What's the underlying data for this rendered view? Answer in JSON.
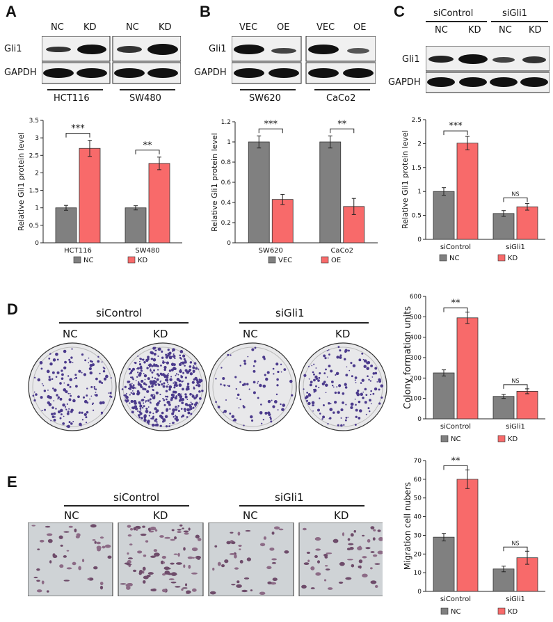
{
  "panels": {
    "A": {
      "label": "A",
      "lanes": [
        "NC",
        "KD",
        "NC",
        "KD"
      ],
      "rows": [
        "Gli1",
        "GAPDH"
      ],
      "groups": [
        "HCT116",
        "SW480"
      ]
    },
    "B": {
      "label": "B",
      "lanes": [
        "VEC",
        "OE",
        "VEC",
        "OE"
      ],
      "rows": [
        "Gli1",
        "GAPDH"
      ],
      "groups": [
        "SW620",
        "CaCo2"
      ]
    },
    "C": {
      "label": "C",
      "groups": [
        "siControl",
        "siGli1"
      ],
      "lanes": [
        "NC",
        "KD",
        "NC",
        "KD"
      ],
      "rows": [
        "Gli1",
        "GAPDH"
      ]
    },
    "D": {
      "label": "D",
      "groups": [
        "siControl",
        "siGli1"
      ],
      "lanes": [
        "NC",
        "KD",
        "NC",
        "KD"
      ]
    },
    "E": {
      "label": "E",
      "groups": [
        "siControl",
        "siGli1"
      ],
      "lanes": [
        "NC",
        "KD",
        "NC",
        "KD"
      ]
    }
  },
  "colors": {
    "nc": "#808080",
    "kd": "#f86a6a"
  },
  "chart_data": [
    {
      "id": "A",
      "type": "bar",
      "categories": [
        "HCT116",
        "SW480"
      ],
      "series": [
        {
          "name": "NC",
          "values": [
            1.0,
            1.0
          ],
          "errors": [
            0.07,
            0.06
          ]
        },
        {
          "name": "KD",
          "values": [
            2.7,
            2.27
          ],
          "errors": [
            0.23,
            0.18
          ]
        }
      ],
      "ylabel": "Relative Gli1 protein level",
      "ylim": [
        0,
        3.5
      ],
      "yticks": [
        "0",
        "0.5",
        "1",
        "1.5",
        "2",
        "2.5",
        "3",
        "3.5"
      ],
      "significance": [
        "***",
        "**"
      ],
      "legend": [
        "NC",
        "KD"
      ]
    },
    {
      "id": "B",
      "type": "bar",
      "categories": [
        "SW620",
        "CaCo2"
      ],
      "series": [
        {
          "name": "VEC",
          "values": [
            1.0,
            1.0
          ],
          "errors": [
            0.06,
            0.06
          ]
        },
        {
          "name": "OE",
          "values": [
            0.43,
            0.36
          ],
          "errors": [
            0.05,
            0.08
          ]
        }
      ],
      "ylabel": "Relative Gli1 protein level",
      "ylim": [
        0,
        1.2
      ],
      "yticks": [
        "0",
        "0.2",
        "0.4",
        "0.6",
        "0.8",
        "1",
        "1.2"
      ],
      "significance": [
        "***",
        "**"
      ],
      "legend": [
        "VEC",
        "OE"
      ]
    },
    {
      "id": "C",
      "type": "bar",
      "categories": [
        "siControl",
        "siGli1"
      ],
      "series": [
        {
          "name": "NC",
          "values": [
            1.0,
            0.54
          ],
          "errors": [
            0.08,
            0.06
          ]
        },
        {
          "name": "KD",
          "values": [
            2.01,
            0.68
          ],
          "errors": [
            0.14,
            0.07
          ]
        }
      ],
      "ylabel": "Relative Gli1 protein level",
      "ylim": [
        0,
        2.5
      ],
      "yticks": [
        "0",
        "0.5",
        "1",
        "1.5",
        "2",
        "2.5"
      ],
      "significance": [
        "***",
        "NS"
      ],
      "legend": [
        "NC",
        "KD"
      ]
    },
    {
      "id": "D",
      "type": "bar",
      "categories": [
        "siControl",
        "siGli1"
      ],
      "series": [
        {
          "name": "NC",
          "values": [
            225,
            110
          ],
          "errors": [
            15,
            10
          ]
        },
        {
          "name": "KD",
          "values": [
            495,
            135
          ],
          "errors": [
            28,
            12
          ]
        }
      ],
      "ylabel": "Colony formation units",
      "ylim": [
        0,
        600
      ],
      "yticks": [
        "0",
        "100",
        "200",
        "300",
        "400",
        "500",
        "600"
      ],
      "significance": [
        "**",
        "NS"
      ],
      "legend": [
        "NC",
        "KD"
      ]
    },
    {
      "id": "E",
      "type": "bar",
      "categories": [
        "siControl",
        "siGli1"
      ],
      "series": [
        {
          "name": "NC",
          "values": [
            29,
            12
          ],
          "errors": [
            2,
            1.5
          ]
        },
        {
          "name": "KD",
          "values": [
            60,
            18
          ],
          "errors": [
            5,
            3.5
          ]
        }
      ],
      "ylabel": "Migration cell nubers",
      "ylim": [
        0,
        70
      ],
      "yticks": [
        "0",
        "10",
        "20",
        "30",
        "40",
        "50",
        "60",
        "70"
      ],
      "significance": [
        "**",
        "NS"
      ],
      "legend": [
        "NC",
        "KD"
      ]
    }
  ]
}
